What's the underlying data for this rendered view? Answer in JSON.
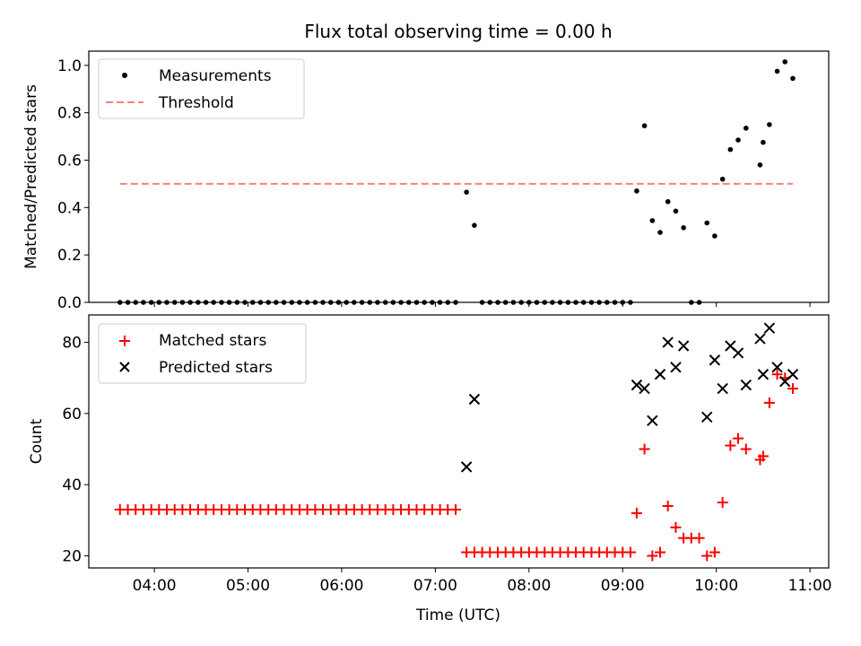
{
  "chart_data": [
    {
      "type": "scatter",
      "title": "Flux total observing time = 0.00 h",
      "xlabel": "",
      "ylabel": "Matched/Predicted stars",
      "xlim": [
        3.3,
        11.2
      ],
      "ylim": [
        0.0,
        1.06
      ],
      "yticks": [
        0.0,
        0.2,
        0.4,
        0.6,
        0.8,
        1.0
      ],
      "ytick_labels": [
        "0.0",
        "0.2",
        "0.4",
        "0.6",
        "0.8",
        "1.0"
      ],
      "xticks": [
        4,
        5,
        6,
        7,
        8,
        9,
        10,
        11
      ],
      "legend": {
        "position": "top-left",
        "entries": [
          "Measurements",
          "Threshold"
        ]
      },
      "series": [
        {
          "name": "Measurements",
          "marker": "dot",
          "color": "#000000",
          "points": [
            [
              3.633,
              0
            ],
            [
              3.717,
              0
            ],
            [
              3.8,
              0
            ],
            [
              3.883,
              0
            ],
            [
              3.967,
              0
            ],
            [
              4.05,
              0
            ],
            [
              4.133,
              0
            ],
            [
              4.217,
              0
            ],
            [
              4.3,
              0
            ],
            [
              4.383,
              0
            ],
            [
              4.467,
              0
            ],
            [
              4.55,
              0
            ],
            [
              4.633,
              0
            ],
            [
              4.717,
              0
            ],
            [
              4.8,
              0
            ],
            [
              4.883,
              0
            ],
            [
              4.967,
              0
            ],
            [
              5.05,
              0
            ],
            [
              5.133,
              0
            ],
            [
              5.217,
              0
            ],
            [
              5.3,
              0
            ],
            [
              5.383,
              0
            ],
            [
              5.467,
              0
            ],
            [
              5.55,
              0
            ],
            [
              5.633,
              0
            ],
            [
              5.717,
              0
            ],
            [
              5.8,
              0
            ],
            [
              5.883,
              0
            ],
            [
              5.967,
              0
            ],
            [
              6.05,
              0
            ],
            [
              6.133,
              0
            ],
            [
              6.217,
              0
            ],
            [
              6.3,
              0
            ],
            [
              6.383,
              0
            ],
            [
              6.467,
              0
            ],
            [
              6.55,
              0
            ],
            [
              6.633,
              0
            ],
            [
              6.717,
              0
            ],
            [
              6.8,
              0
            ],
            [
              6.883,
              0
            ],
            [
              6.967,
              0
            ],
            [
              7.05,
              0
            ],
            [
              7.133,
              0
            ],
            [
              7.217,
              0
            ],
            [
              7.333,
              0.465
            ],
            [
              7.417,
              0.325
            ],
            [
              7.5,
              0
            ],
            [
              7.583,
              0
            ],
            [
              7.667,
              0
            ],
            [
              7.75,
              0
            ],
            [
              7.833,
              0
            ],
            [
              7.917,
              0
            ],
            [
              8.0,
              0
            ],
            [
              8.083,
              0
            ],
            [
              8.167,
              0
            ],
            [
              8.25,
              0
            ],
            [
              8.333,
              0
            ],
            [
              8.417,
              0
            ],
            [
              8.5,
              0
            ],
            [
              8.583,
              0
            ],
            [
              8.667,
              0
            ],
            [
              8.75,
              0
            ],
            [
              8.833,
              0
            ],
            [
              8.917,
              0
            ],
            [
              9.0,
              0
            ],
            [
              9.083,
              0
            ],
            [
              9.15,
              0.47
            ],
            [
              9.233,
              0.745
            ],
            [
              9.317,
              0.345
            ],
            [
              9.4,
              0.295
            ],
            [
              9.483,
              0.425
            ],
            [
              9.567,
              0.385
            ],
            [
              9.65,
              0.315
            ],
            [
              9.733,
              0
            ],
            [
              9.817,
              0
            ],
            [
              9.9,
              0.335
            ],
            [
              9.983,
              0.28
            ],
            [
              10.067,
              0.52
            ],
            [
              10.15,
              0.645
            ],
            [
              10.233,
              0.685
            ],
            [
              10.317,
              0.735
            ],
            [
              10.467,
              0.58
            ],
            [
              10.5,
              0.675
            ],
            [
              10.567,
              0.75
            ],
            [
              10.65,
              0.975
            ],
            [
              10.733,
              1.015
            ],
            [
              10.817,
              0.945
            ]
          ]
        },
        {
          "name": "Threshold",
          "style": "dashed",
          "color": "#ff7f7f",
          "points": [
            [
              3.633,
              0.5
            ],
            [
              10.817,
              0.5
            ]
          ]
        }
      ]
    },
    {
      "type": "scatter",
      "title": "",
      "xlabel": "Time (UTC)",
      "ylabel": "Count",
      "xlim": [
        3.3,
        11.2
      ],
      "ylim": [
        16.6,
        87.7
      ],
      "yticks": [
        20,
        40,
        60,
        80
      ],
      "ytick_labels": [
        "20",
        "40",
        "60",
        "80"
      ],
      "xticks": [
        4,
        5,
        6,
        7,
        8,
        9,
        10,
        11
      ],
      "xtick_labels": [
        "04:00",
        "05:00",
        "06:00",
        "07:00",
        "08:00",
        "09:00",
        "10:00",
        "11:00"
      ],
      "legend": {
        "position": "top-left",
        "entries": [
          "Matched stars",
          "Predicted stars"
        ]
      },
      "series": [
        {
          "name": "Matched stars",
          "marker": "plus",
          "color": "#ff0000",
          "points": [
            [
              3.633,
              33
            ],
            [
              3.717,
              33
            ],
            [
              3.8,
              33
            ],
            [
              3.883,
              33
            ],
            [
              3.967,
              33
            ],
            [
              4.05,
              33
            ],
            [
              4.133,
              33
            ],
            [
              4.217,
              33
            ],
            [
              4.3,
              33
            ],
            [
              4.383,
              33
            ],
            [
              4.467,
              33
            ],
            [
              4.55,
              33
            ],
            [
              4.633,
              33
            ],
            [
              4.717,
              33
            ],
            [
              4.8,
              33
            ],
            [
              4.883,
              33
            ],
            [
              4.967,
              33
            ],
            [
              5.05,
              33
            ],
            [
              5.133,
              33
            ],
            [
              5.217,
              33
            ],
            [
              5.3,
              33
            ],
            [
              5.383,
              33
            ],
            [
              5.467,
              33
            ],
            [
              5.55,
              33
            ],
            [
              5.633,
              33
            ],
            [
              5.717,
              33
            ],
            [
              5.8,
              33
            ],
            [
              5.883,
              33
            ],
            [
              5.967,
              33
            ],
            [
              6.05,
              33
            ],
            [
              6.133,
              33
            ],
            [
              6.217,
              33
            ],
            [
              6.3,
              33
            ],
            [
              6.383,
              33
            ],
            [
              6.467,
              33
            ],
            [
              6.55,
              33
            ],
            [
              6.633,
              33
            ],
            [
              6.717,
              33
            ],
            [
              6.8,
              33
            ],
            [
              6.883,
              33
            ],
            [
              6.967,
              33
            ],
            [
              7.05,
              33
            ],
            [
              7.133,
              33
            ],
            [
              7.217,
              33
            ],
            [
              7.333,
              21
            ],
            [
              7.417,
              21
            ],
            [
              7.5,
              21
            ],
            [
              7.583,
              21
            ],
            [
              7.667,
              21
            ],
            [
              7.75,
              21
            ],
            [
              7.833,
              21
            ],
            [
              7.917,
              21
            ],
            [
              8.0,
              21
            ],
            [
              8.083,
              21
            ],
            [
              8.167,
              21
            ],
            [
              8.25,
              21
            ],
            [
              8.333,
              21
            ],
            [
              8.417,
              21
            ],
            [
              8.5,
              21
            ],
            [
              8.583,
              21
            ],
            [
              8.667,
              21
            ],
            [
              8.75,
              21
            ],
            [
              8.833,
              21
            ],
            [
              8.917,
              21
            ],
            [
              9.0,
              21
            ],
            [
              9.083,
              21
            ],
            [
              9.15,
              32
            ],
            [
              9.233,
              50
            ],
            [
              9.317,
              20
            ],
            [
              9.4,
              21
            ],
            [
              9.483,
              34
            ],
            [
              9.567,
              28
            ],
            [
              9.65,
              25
            ],
            [
              9.733,
              25
            ],
            [
              9.817,
              25
            ],
            [
              9.9,
              20
            ],
            [
              9.983,
              21
            ],
            [
              10.067,
              35
            ],
            [
              10.15,
              51
            ],
            [
              10.233,
              53
            ],
            [
              10.317,
              50
            ],
            [
              10.467,
              47
            ],
            [
              10.5,
              48
            ],
            [
              10.567,
              63
            ],
            [
              10.65,
              71
            ],
            [
              10.733,
              70
            ],
            [
              10.817,
              67
            ]
          ]
        },
        {
          "name": "Predicted stars",
          "marker": "x",
          "color": "#000000",
          "points": [
            [
              7.333,
              45
            ],
            [
              7.417,
              64
            ],
            [
              9.15,
              68
            ],
            [
              9.233,
              67
            ],
            [
              9.317,
              58
            ],
            [
              9.4,
              71
            ],
            [
              9.483,
              80
            ],
            [
              9.567,
              73
            ],
            [
              9.65,
              79
            ],
            [
              9.9,
              59
            ],
            [
              9.983,
              75
            ],
            [
              10.067,
              67
            ],
            [
              10.15,
              79
            ],
            [
              10.233,
              77
            ],
            [
              10.317,
              68
            ],
            [
              10.467,
              81
            ],
            [
              10.5,
              71
            ],
            [
              10.567,
              84
            ],
            [
              10.65,
              73
            ],
            [
              10.733,
              69
            ],
            [
              10.817,
              71
            ]
          ]
        }
      ]
    }
  ]
}
